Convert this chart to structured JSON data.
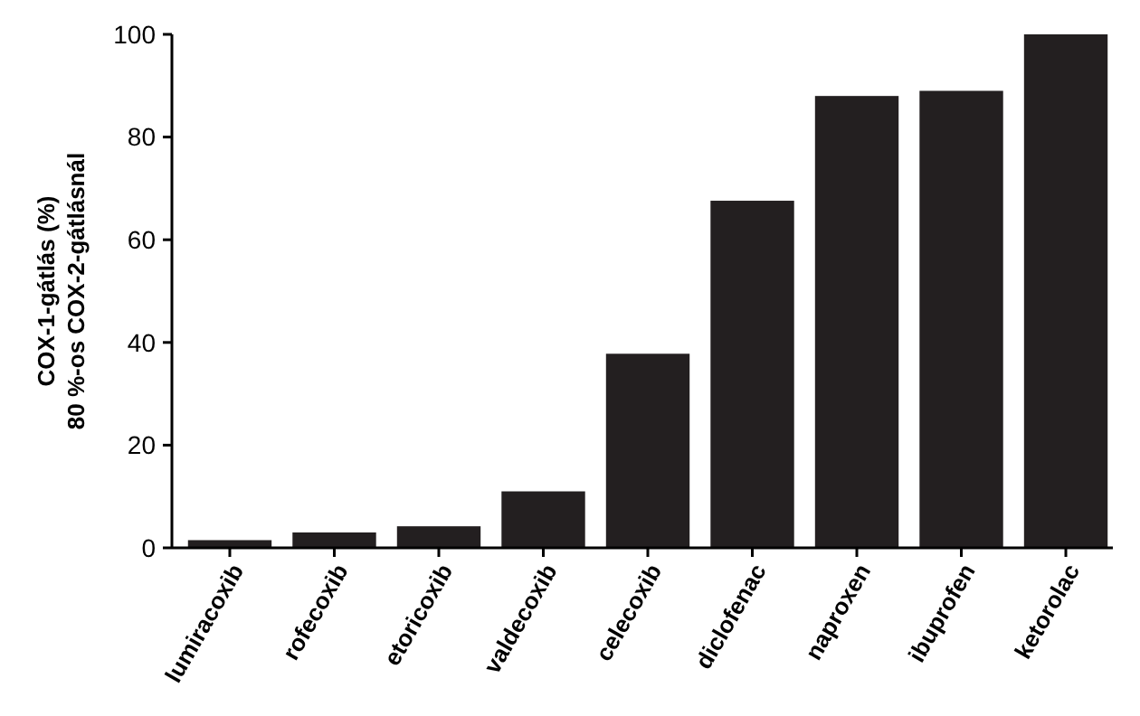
{
  "chart_data": {
    "type": "bar",
    "ylabel": "COX-1-gátlás (%)\n80 %-os COX-2-gátlásnál",
    "categories": [
      "lumiracoxib",
      "rofecoxib",
      "etoricoxib",
      "valdecoxib",
      "celecoxib",
      "diclofenac",
      "naproxen",
      "ibuprofen",
      "ketorolac"
    ],
    "values": [
      1.5,
      3,
      4.2,
      11,
      37.8,
      67.6,
      88,
      89,
      100
    ],
    "color": "#231f20",
    "ylim": [
      0,
      100
    ],
    "yticks": [
      0,
      20,
      40,
      60,
      80,
      100
    ],
    "grid": false
  }
}
